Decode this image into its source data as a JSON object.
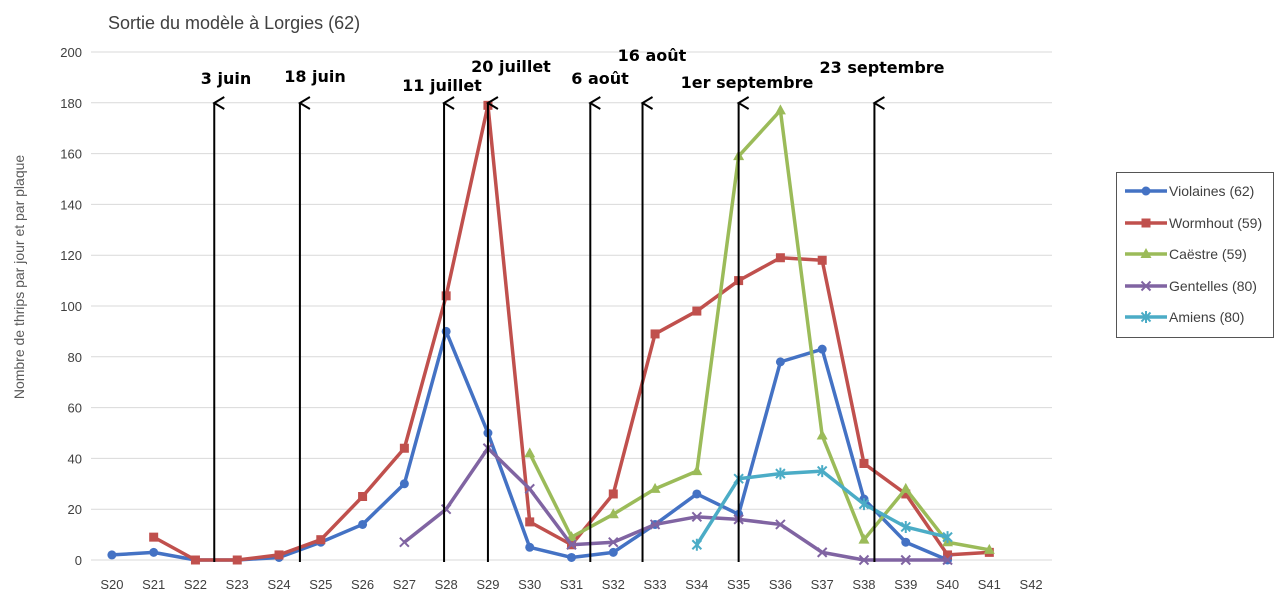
{
  "chart_data": {
    "type": "line",
    "title": "Sortie du modèle à Lorgies (62)",
    "xlabel": "",
    "ylabel": "Nombre de thrips par jour et par plaque",
    "ylim": [
      0,
      200
    ],
    "yticks": [
      0,
      20,
      40,
      60,
      80,
      100,
      120,
      140,
      160,
      180,
      200
    ],
    "grid": true,
    "legend_position": "right",
    "categories": [
      "S20",
      "S21",
      "S22",
      "S23",
      "S24",
      "S25",
      "S26",
      "S27",
      "S28",
      "S29",
      "S30",
      "S31",
      "S32",
      "S33",
      "S34",
      "S35",
      "S36",
      "S37",
      "S38",
      "S39",
      "S40",
      "S41",
      "S42"
    ],
    "series": [
      {
        "name": "Violaines (62)",
        "color": "#4472C4",
        "marker": "circle",
        "values": [
          2,
          3,
          0,
          0,
          1,
          7,
          14,
          30,
          90,
          50,
          5,
          1,
          3,
          14,
          26,
          18,
          78,
          83,
          24,
          7,
          0,
          null,
          null
        ]
      },
      {
        "name": "Wormhout (59)",
        "color": "#C0504D",
        "marker": "square",
        "values": [
          null,
          9,
          0,
          0,
          2,
          8,
          25,
          44,
          104,
          179,
          15,
          6,
          26,
          89,
          98,
          110,
          119,
          118,
          38,
          26,
          2,
          3,
          null
        ]
      },
      {
        "name": "Caëstre (59)",
        "color": "#9BBB59",
        "marker": "triangle",
        "values": [
          null,
          null,
          null,
          null,
          null,
          null,
          null,
          null,
          null,
          null,
          42,
          9,
          18,
          28,
          35,
          159,
          177,
          49,
          8,
          28,
          7,
          4,
          null
        ]
      },
      {
        "name": "Gentelles (80)",
        "color": "#8064A2",
        "marker": "x",
        "values": [
          null,
          null,
          null,
          null,
          null,
          null,
          null,
          7,
          20,
          44,
          28,
          6,
          7,
          14,
          17,
          16,
          14,
          3,
          0,
          0,
          0,
          null,
          null
        ]
      },
      {
        "name": "Amiens (80)",
        "color": "#4BACC6",
        "marker": "star",
        "values": [
          null,
          null,
          null,
          null,
          null,
          null,
          null,
          null,
          null,
          null,
          null,
          null,
          null,
          null,
          6,
          32,
          34,
          35,
          22,
          13,
          9,
          null,
          null
        ]
      }
    ],
    "annotations": [
      {
        "label": "3 juin",
        "x": 22.45
      },
      {
        "label": "18 juin",
        "x": 24.5
      },
      {
        "label": "11 juillet",
        "x": 27.95
      },
      {
        "label": "20 juillet",
        "x": 29.0
      },
      {
        "label": "6 août",
        "x": 31.45
      },
      {
        "label": "16 août",
        "x": 32.7
      },
      {
        "label": "1er septembre",
        "x": 35.0
      },
      {
        "label": "23 septembre",
        "x": 38.25
      }
    ]
  }
}
